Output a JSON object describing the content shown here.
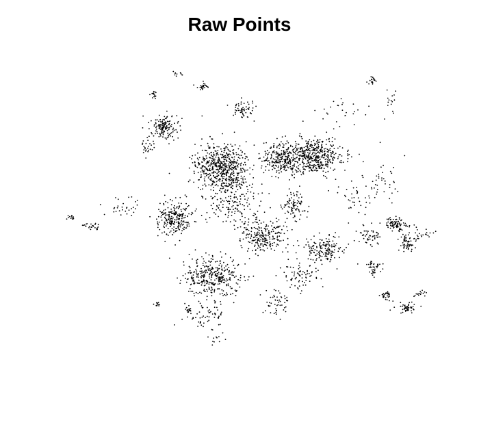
{
  "chart_data": {
    "type": "scatter",
    "title": "Raw Points",
    "xlabel": "",
    "ylabel": "",
    "axes": "none",
    "grid": false,
    "legend": "none",
    "point_color": "#000000",
    "series": [
      {
        "clusters": [
          {
            "center": [
              325,
              245
            ],
            "spread": [
              32,
              30
            ],
            "count": 620
          },
          {
            "center": [
              455,
              228
            ],
            "spread": [
              40,
              22
            ],
            "count": 520
          },
          {
            "center": [
              410,
              235
            ],
            "spread": [
              20,
              18
            ],
            "count": 180
          },
          {
            "center": [
              310,
              405
            ],
            "spread": [
              35,
              25
            ],
            "count": 360
          },
          {
            "center": [
              255,
              320
            ],
            "spread": [
              20,
              22
            ],
            "count": 240
          },
          {
            "center": [
              385,
              345
            ],
            "spread": [
              30,
              20
            ],
            "count": 240
          },
          {
            "center": [
              475,
              365
            ],
            "spread": [
              22,
              16
            ],
            "count": 160
          },
          {
            "center": [
              240,
              185
            ],
            "spread": [
              17,
              15
            ],
            "count": 150
          },
          {
            "center": [
              578,
              328
            ],
            "spread": [
              15,
              8
            ],
            "count": 90
          },
          {
            "center": [
              595,
              355
            ],
            "spread": [
              10,
              10
            ],
            "count": 60
          },
          {
            "center": [
              595,
              450
            ],
            "spread": [
              15,
              7
            ],
            "count": 50
          },
          {
            "center": [
              545,
              390
            ],
            "spread": [
              10,
              10
            ],
            "count": 40
          },
          {
            "center": [
              565,
              432
            ],
            "spread": [
              8,
              6
            ],
            "count": 30
          },
          {
            "center": [
              430,
              300
            ],
            "spread": [
              15,
              15
            ],
            "count": 90
          },
          {
            "center": [
              355,
              160
            ],
            "spread": [
              15,
              10
            ],
            "count": 60
          },
          {
            "center": [
              300,
              460
            ],
            "spread": [
              25,
              15
            ],
            "count": 60
          },
          {
            "center": [
              405,
              440
            ],
            "spread": [
              20,
              15
            ],
            "count": 50
          },
          {
            "center": [
              540,
              345
            ],
            "spread": [
              14,
              12
            ],
            "count": 50
          },
          {
            "center": [
              135,
              330
            ],
            "spread": [
              12,
              5
            ],
            "count": 25
          },
          {
            "center": [
              105,
              318
            ],
            "spread": [
              5,
              3
            ],
            "count": 12
          },
          {
            "center": [
              545,
              117
            ],
            "spread": [
              5,
              4
            ],
            "count": 20
          },
          {
            "center": [
              296,
              127
            ],
            "spread": [
              8,
              4
            ],
            "count": 25
          },
          {
            "center": [
              225,
              138
            ],
            "spread": [
              4,
              4
            ],
            "count": 15
          },
          {
            "center": [
              230,
              445
            ],
            "spread": [
              4,
              3
            ],
            "count": 10
          },
          {
            "center": [
              275,
              453
            ],
            "spread": [
              4,
              4
            ],
            "count": 15
          },
          {
            "center": [
              260,
              108
            ],
            "spread": [
              12,
              3
            ],
            "count": 10
          },
          {
            "center": [
              570,
              150
            ],
            "spread": [
              10,
              20
            ],
            "count": 15
          },
          {
            "center": [
              500,
              160
            ],
            "spread": [
              25,
              15
            ],
            "count": 25
          },
          {
            "center": [
              520,
              290
            ],
            "spread": [
              20,
              20
            ],
            "count": 40
          },
          {
            "center": [
              620,
              340
            ],
            "spread": [
              12,
              8
            ],
            "count": 20
          },
          {
            "center": [
              180,
              305
            ],
            "spread": [
              20,
              12
            ],
            "count": 30
          },
          {
            "center": [
              215,
              215
            ],
            "spread": [
              10,
              10
            ],
            "count": 25
          },
          {
            "center": [
              560,
              265
            ],
            "spread": [
              20,
              30
            ],
            "count": 40
          },
          {
            "center": [
              340,
              300
            ],
            "spread": [
              35,
              25
            ],
            "count": 150
          },
          {
            "center": [
              440,
              400
            ],
            "spread": [
              25,
              20
            ],
            "count": 80
          },
          {
            "center": [
              615,
              430
            ],
            "spread": [
              8,
              6
            ],
            "count": 15
          },
          {
            "center": [
              318,
              495
            ],
            "spread": [
              10,
              8
            ],
            "count": 12
          }
        ]
      }
    ]
  }
}
